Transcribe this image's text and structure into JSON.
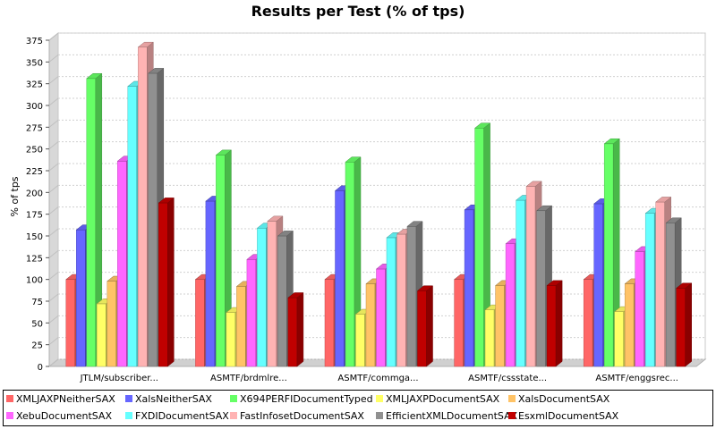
{
  "chart_data": {
    "type": "bar",
    "title": "Results per Test (% of tps)",
    "xlabel": "",
    "ylabel": "% of tps",
    "ylim": [
      0,
      375
    ],
    "yticks": [
      0,
      25,
      50,
      75,
      100,
      125,
      150,
      175,
      200,
      225,
      250,
      275,
      300,
      325,
      350,
      375
    ],
    "grid": true,
    "legend_position": "bottom",
    "render_3d": true,
    "categories": [
      "JTLM/subscriber...",
      "ASMTF/brdmlre...",
      "ASMTF/commga...",
      "ASMTF/cssstate...",
      "ASMTF/enggsrec..."
    ],
    "series": [
      {
        "name": "XMLJAXPNeitherSAX",
        "color": "#ff6666",
        "values": [
          100,
          100,
          100,
          100,
          100
        ]
      },
      {
        "name": "XalsNeitherSAX",
        "color": "#6666ff",
        "values": [
          157,
          190,
          202,
          180,
          187
        ]
      },
      {
        "name": "X694PERFIDocumentTyped",
        "color": "#66ff66",
        "values": [
          331,
          243,
          235,
          274,
          256
        ]
      },
      {
        "name": "XMLJAXPDocumentSAX",
        "color": "#ffff66",
        "values": [
          72,
          62,
          60,
          65,
          63
        ]
      },
      {
        "name": "XalsDocumentSAX",
        "color": "#ffc366",
        "values": [
          98,
          92,
          95,
          93,
          95
        ]
      },
      {
        "name": "XebuDocumentSAX",
        "color": "#ff66ff",
        "values": [
          236,
          123,
          112,
          141,
          132
        ]
      },
      {
        "name": "FXDIDocumentSAX",
        "color": "#66ffff",
        "values": [
          322,
          159,
          148,
          191,
          176
        ]
      },
      {
        "name": "FastInfosetDocumentSAX",
        "color": "#ffb3b3",
        "values": [
          367,
          167,
          152,
          207,
          189
        ]
      },
      {
        "name": "EfficientXMLDocumentSAX",
        "color": "#909090",
        "values": [
          337,
          150,
          161,
          179,
          165
        ]
      },
      {
        "name": "EsxmlDocumentSAX",
        "color": "#c00000",
        "values": [
          188,
          79,
          87,
          93,
          90
        ]
      }
    ]
  }
}
